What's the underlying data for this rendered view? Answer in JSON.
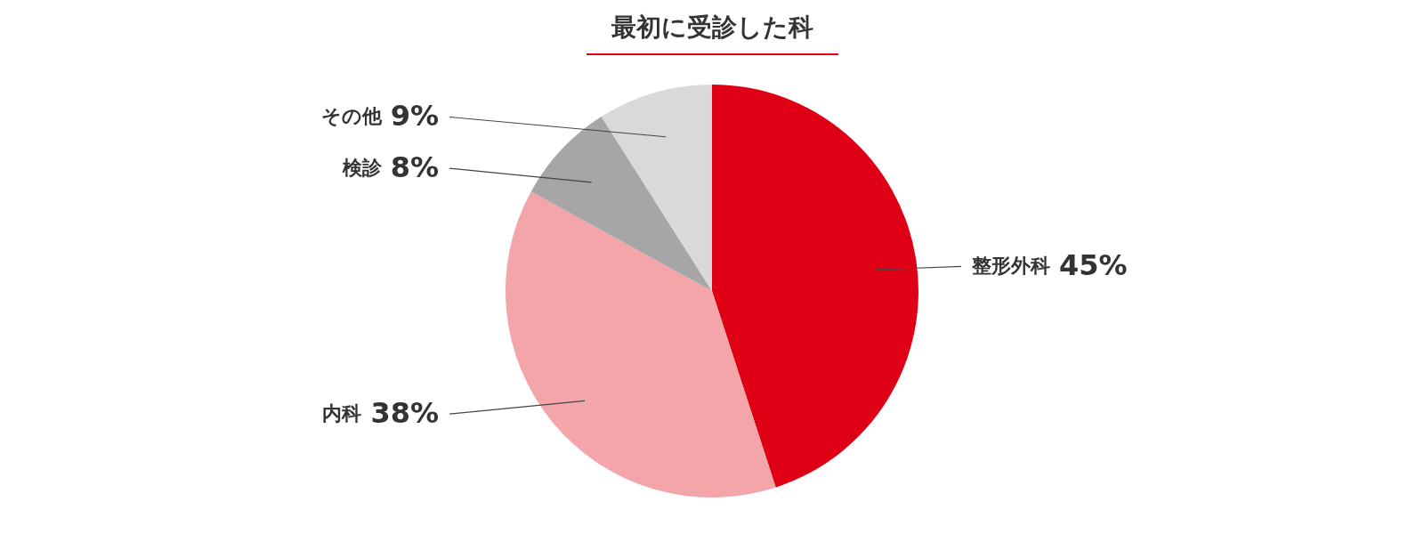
{
  "chart_data": {
    "type": "pie",
    "title": "最初に受診した科",
    "categories": [
      "整形外科",
      "内科",
      "検診",
      "その他"
    ],
    "values": [
      45,
      38,
      8,
      9
    ],
    "value_labels": [
      "45%",
      "38%",
      "8%",
      "9%"
    ],
    "colors": [
      "#e00015",
      "#f3a5aa",
      "#a6a6a6",
      "#d9d9d9"
    ],
    "legend": false
  }
}
